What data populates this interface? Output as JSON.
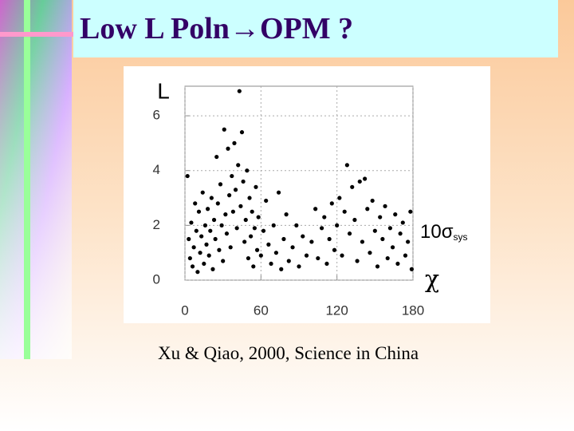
{
  "slide": {
    "title": "Low L Poln→OPM ?",
    "caption": "Xu & Qiao, 2000, Science in China"
  },
  "chart_data": {
    "type": "scatter",
    "y_label": "L",
    "x_label": "χ",
    "annotation": {
      "main": "10σ",
      "sub": "sys"
    },
    "color": "#000000",
    "xlim": [
      0,
      180
    ],
    "ylim": [
      0,
      7.08
    ],
    "xticks": [
      0,
      60,
      120,
      180
    ],
    "yticks": [
      0,
      2,
      4,
      6
    ],
    "grid": true,
    "x": [
      2,
      3,
      4,
      5,
      6,
      7,
      8,
      9,
      10,
      11,
      12,
      13,
      14,
      15,
      16,
      17,
      18,
      19,
      20,
      21,
      22,
      23,
      24,
      25,
      26,
      27,
      28,
      29,
      30,
      31,
      32,
      33,
      34,
      35,
      36,
      37,
      38,
      39,
      40,
      41,
      42,
      43,
      44,
      45,
      46,
      47,
      48,
      49,
      50,
      51,
      52,
      53,
      54,
      55,
      56,
      57,
      58,
      60,
      62,
      64,
      66,
      68,
      70,
      72,
      74,
      76,
      78,
      80,
      82,
      85,
      88,
      90,
      93,
      96,
      100,
      103,
      105,
      108,
      110,
      112,
      114,
      116,
      118,
      120,
      122,
      124,
      126,
      128,
      130,
      132,
      134,
      136,
      138,
      140,
      142,
      144,
      146,
      148,
      150,
      152,
      154,
      156,
      158,
      160,
      162,
      164,
      166,
      168,
      170,
      172,
      174,
      176,
      178,
      179
    ],
    "values": [
      3.8,
      1.5,
      0.8,
      2.1,
      0.5,
      1.2,
      2.8,
      1.8,
      0.3,
      2.5,
      1.0,
      1.6,
      3.2,
      0.6,
      2.0,
      1.3,
      2.6,
      0.9,
      1.8,
      3.0,
      0.4,
      2.2,
      1.5,
      4.5,
      2.8,
      1.1,
      3.5,
      2.0,
      0.7,
      5.5,
      2.4,
      1.7,
      4.8,
      3.1,
      1.2,
      3.8,
      2.5,
      5.0,
      3.3,
      1.9,
      4.2,
      6.9,
      2.7,
      5.4,
      3.6,
      1.4,
      2.2,
      4.0,
      0.8,
      3.0,
      1.6,
      2.5,
      0.5,
      1.9,
      3.4,
      1.1,
      2.3,
      0.9,
      1.8,
      2.9,
      1.3,
      0.6,
      2.0,
      1.0,
      3.2,
      0.4,
      1.5,
      2.4,
      0.7,
      1.2,
      2.0,
      0.5,
      1.6,
      0.9,
      1.4,
      2.6,
      0.8,
      1.9,
      2.3,
      0.6,
      1.5,
      2.8,
      1.1,
      2.0,
      3.0,
      0.9,
      2.5,
      4.2,
      1.7,
      3.4,
      2.2,
      0.7,
      3.6,
      1.4,
      3.7,
      2.6,
      1.0,
      2.9,
      1.8,
      0.5,
      2.3,
      1.5,
      2.7,
      0.8,
      1.9,
      1.2,
      2.4,
      0.6,
      1.7,
      2.1,
      0.9,
      1.4,
      2.5,
      0.4
    ]
  }
}
